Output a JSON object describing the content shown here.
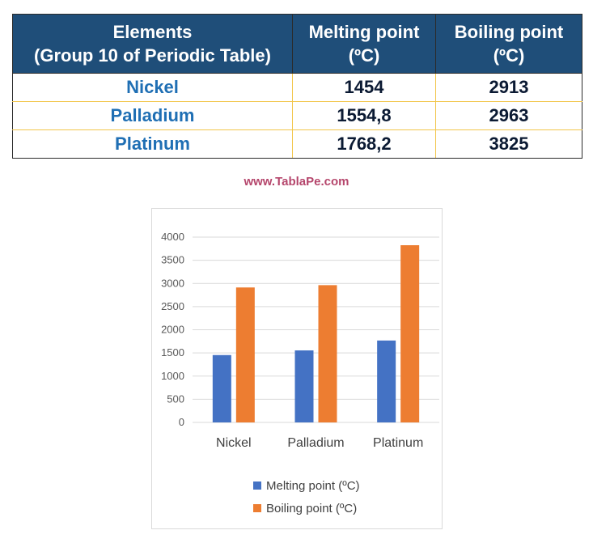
{
  "table": {
    "headers": [
      {
        "line1": "Elements",
        "line2": "(Group 10 of Periodic Table)"
      },
      {
        "line1": "Melting point",
        "line2": "(ºC)"
      },
      {
        "line1": "Boiling point",
        "line2": "(ºC)"
      }
    ],
    "rows": [
      {
        "element": "Nickel",
        "melting": "1454",
        "boiling": "2913"
      },
      {
        "element": "Palladium",
        "melting": "1554,8",
        "boiling": "2963"
      },
      {
        "element": "Platinum",
        "melting": "1768,2",
        "boiling": "3825"
      }
    ]
  },
  "watermark": "www.TablaPe.com",
  "colors": {
    "header_bg": "#1f4e79",
    "element_text": "#1f6fb4",
    "melting": "#4472c4",
    "boiling": "#ed7d31",
    "watermark": "#b5466c"
  },
  "chart_data": {
    "type": "bar",
    "categories": [
      "Nickel",
      "Palladium",
      "Platinum"
    ],
    "series": [
      {
        "name": "Melting point (ºC)",
        "values": [
          1454,
          1554.8,
          1768.2
        ]
      },
      {
        "name": "Boiling point (ºC)",
        "values": [
          2913,
          2963,
          3825
        ]
      }
    ],
    "yticks": [
      0,
      500,
      1000,
      1500,
      2000,
      2500,
      3000,
      3500,
      4000
    ],
    "ylim": [
      0,
      4000
    ],
    "grid": true,
    "legend_position": "bottom"
  }
}
